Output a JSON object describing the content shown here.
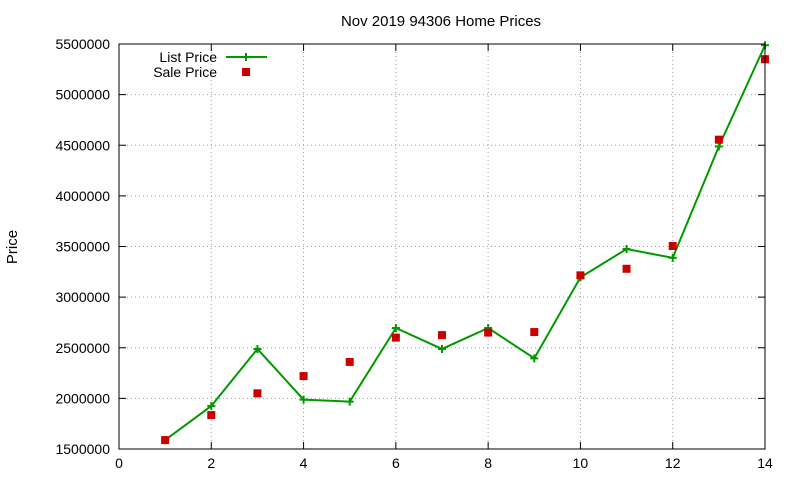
{
  "chart_data": {
    "type": "line",
    "title": "Nov 2019 94306 Home Prices",
    "ylabel": "Price",
    "xlabel": "",
    "xlim": [
      0,
      14
    ],
    "ylim": [
      1500000,
      5500000
    ],
    "xticks": [
      0,
      2,
      4,
      6,
      8,
      10,
      12,
      14
    ],
    "yticks": [
      1500000,
      2000000,
      2500000,
      3000000,
      3500000,
      4000000,
      4500000,
      5000000,
      5500000
    ],
    "grid": true,
    "legend_position": "top-left",
    "series": [
      {
        "name": "List Price",
        "style": "line-plus",
        "color": "#009900",
        "x": [
          1,
          2,
          3,
          4,
          5,
          6,
          7,
          8,
          9,
          10,
          11,
          12,
          13,
          14
        ],
        "y": [
          1588000,
          1925000,
          2488000,
          1988000,
          1968000,
          2695000,
          2488000,
          2695000,
          2395000,
          3195000,
          3475000,
          3388000,
          4488000,
          5488000
        ]
      },
      {
        "name": "Sale Price",
        "style": "square-points",
        "color": "#cc0000",
        "x": [
          1,
          2,
          3,
          4,
          5,
          6,
          7,
          8,
          9,
          10,
          11,
          12,
          13,
          14
        ],
        "y": [
          1588000,
          1835000,
          2050000,
          2220000,
          2360000,
          2600000,
          2625000,
          2650000,
          2655000,
          3215000,
          3280000,
          3505000,
          4555000,
          5350000
        ]
      }
    ]
  }
}
